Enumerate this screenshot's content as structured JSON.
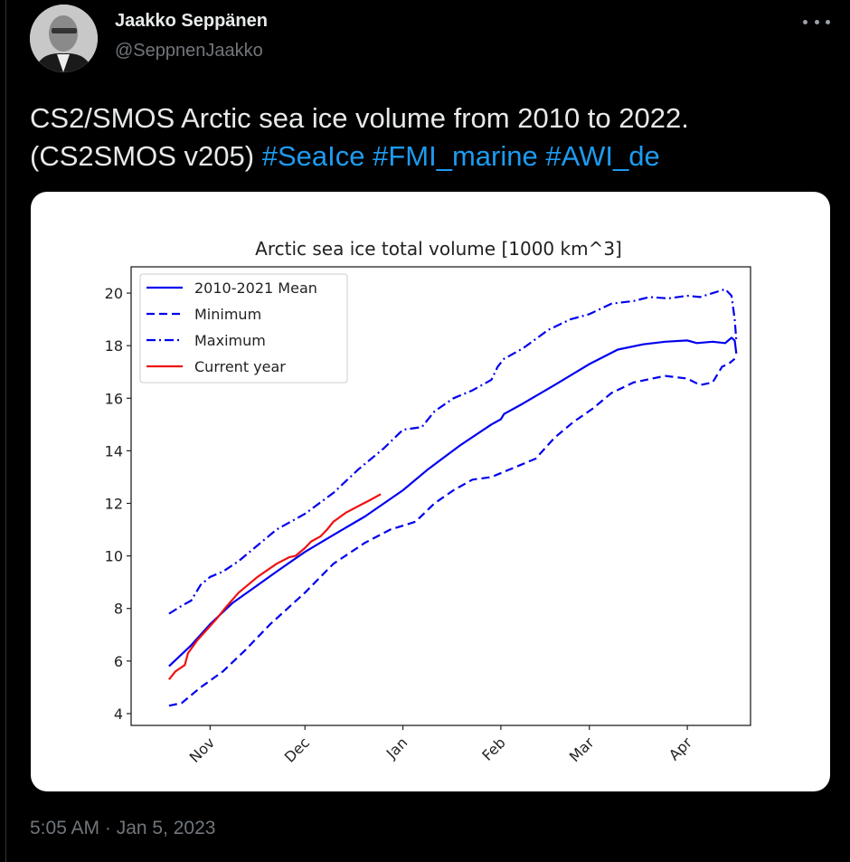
{
  "tweet": {
    "author_name": "Jaakko Seppänen",
    "author_handle": "@SeppnenJaakko",
    "more_icon": "more-horizontal-icon",
    "text_plain": "CS2/SMOS Arctic sea ice volume from 2010 to 2022. (CS2SMOS v205) ",
    "hashtags": [
      "#SeaIce",
      "#FMI_marine",
      "#AWI_de"
    ],
    "timestamp": "5:05 AM · Jan 5, 2023",
    "link_color": "#1d9bf0"
  },
  "chart_data": {
    "type": "line",
    "title": "Arctic sea ice total volume [1000 km^3]",
    "xlabel": "",
    "ylabel": "",
    "x_units": "days since Oct 1",
    "xlim": [
      6,
      202
    ],
    "ylim": [
      3.55,
      21
    ],
    "yticks": [
      4,
      6,
      8,
      10,
      12,
      14,
      16,
      18,
      20
    ],
    "xticks": [
      {
        "label": "Nov",
        "day": 31
      },
      {
        "label": "Dec",
        "day": 61
      },
      {
        "label": "Jan",
        "day": 92
      },
      {
        "label": "Feb",
        "day": 123
      },
      {
        "label": "Mar",
        "day": 151
      },
      {
        "label": "Apr",
        "day": 182
      }
    ],
    "legend_position": "top-left",
    "series": [
      {
        "name": "2010-2021 Mean",
        "color": "#0000ee",
        "style": "solid",
        "x": [
          18,
          25,
          31,
          38,
          45,
          52,
          61,
          70,
          80,
          92,
          100,
          110,
          120,
          123,
          124,
          130,
          140,
          151,
          160,
          168,
          175,
          182,
          185,
          190,
          194,
          196,
          197,
          197.5
        ],
        "y": [
          5.8,
          6.6,
          7.4,
          8.2,
          8.8,
          9.4,
          10.15,
          10.8,
          11.5,
          12.5,
          13.3,
          14.2,
          15.0,
          15.2,
          15.4,
          15.8,
          16.5,
          17.3,
          17.85,
          18.05,
          18.15,
          18.2,
          18.1,
          18.15,
          18.1,
          18.3,
          18.2,
          17.7
        ]
      },
      {
        "name": "Minimum",
        "color": "#0000ee",
        "style": "dashed",
        "x": [
          18,
          22,
          28,
          35,
          42,
          50,
          61,
          70,
          80,
          88,
          96,
          102,
          108,
          114,
          120,
          124,
          128,
          134,
          140,
          146,
          152,
          158,
          165,
          175,
          182,
          186,
          190,
          193,
          195,
          197
        ],
        "y": [
          4.3,
          4.4,
          5.0,
          5.6,
          6.4,
          7.4,
          8.6,
          9.7,
          10.5,
          11.0,
          11.3,
          12.0,
          12.5,
          12.9,
          13.0,
          13.2,
          13.4,
          13.7,
          14.5,
          15.1,
          15.6,
          16.2,
          16.6,
          16.85,
          16.75,
          16.5,
          16.6,
          17.2,
          17.3,
          17.5
        ]
      },
      {
        "name": "Maximum",
        "color": "#0000ee",
        "style": "dashdot",
        "x": [
          18,
          22,
          25,
          28,
          31,
          35,
          40,
          45,
          52,
          61,
          70,
          78,
          86,
          92,
          98,
          102,
          108,
          114,
          120,
          122,
          124,
          130,
          138,
          145,
          151,
          158,
          165,
          170,
          176,
          182,
          186,
          190,
          194,
          196,
          197,
          197.5
        ],
        "y": [
          7.8,
          8.1,
          8.3,
          8.9,
          9.2,
          9.4,
          9.8,
          10.3,
          11.0,
          11.6,
          12.4,
          13.3,
          14.1,
          14.8,
          14.9,
          15.5,
          16.0,
          16.3,
          16.7,
          17.2,
          17.5,
          17.9,
          18.6,
          19.0,
          19.2,
          19.6,
          19.7,
          19.85,
          19.8,
          19.9,
          19.85,
          20.0,
          20.15,
          19.9,
          19.0,
          18.2
        ]
      },
      {
        "name": "Current year",
        "color": "#ee1111",
        "style": "solid",
        "x": [
          18,
          20,
          23,
          24,
          27,
          30,
          33,
          35,
          36,
          40,
          46,
          52,
          56,
          58,
          61,
          63,
          66,
          68,
          70,
          74,
          78,
          82,
          85
        ],
        "y": [
          5.3,
          5.6,
          5.85,
          6.3,
          6.8,
          7.2,
          7.6,
          7.9,
          8.05,
          8.6,
          9.2,
          9.7,
          9.95,
          10.0,
          10.3,
          10.55,
          10.75,
          11.0,
          11.3,
          11.65,
          11.9,
          12.15,
          12.35
        ]
      }
    ]
  }
}
